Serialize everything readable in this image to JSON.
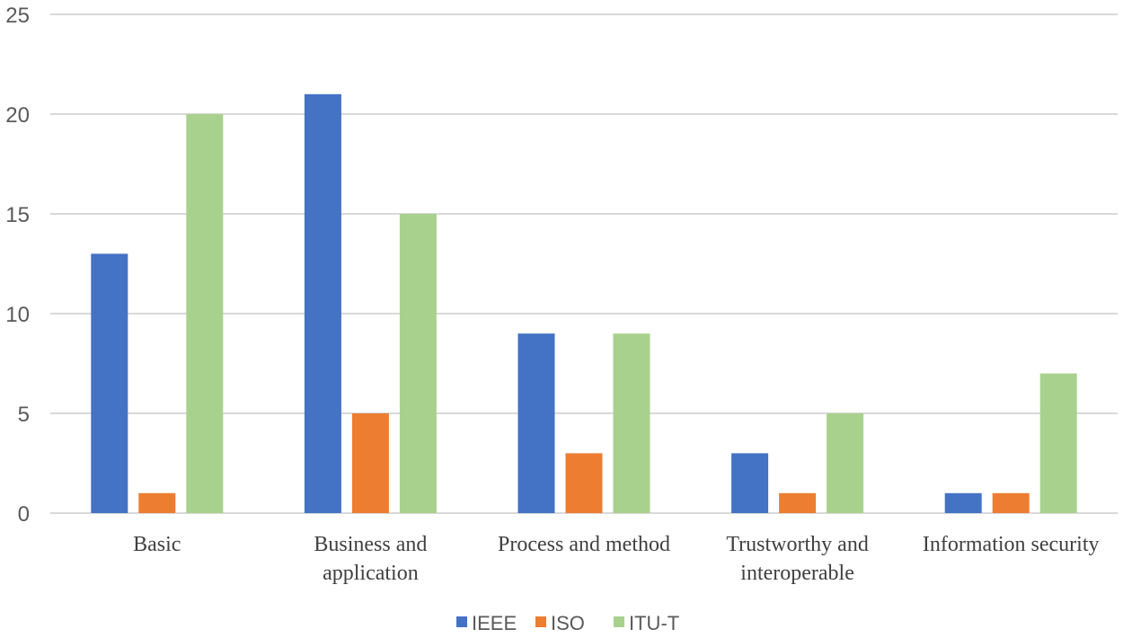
{
  "chart_data": {
    "type": "bar",
    "title": "",
    "xlabel": "",
    "ylabel": "",
    "ylim": [
      0,
      25
    ],
    "yticks": [
      0,
      5,
      10,
      15,
      20,
      25
    ],
    "grid": true,
    "legend_position": "bottom",
    "categories": [
      [
        "Basic"
      ],
      [
        "Business and",
        "application"
      ],
      [
        "Process and method"
      ],
      [
        "Trustworthy and",
        "interoperable"
      ],
      [
        "Information security"
      ]
    ],
    "category_names": [
      "Basic",
      "Business and application",
      "Process and method",
      "Trustworthy and interoperable",
      "Information security"
    ],
    "series": [
      {
        "name": "IEEE",
        "color": "#4472C4",
        "values": [
          13,
          21,
          9,
          3,
          1
        ]
      },
      {
        "name": "ISO",
        "color": "#ED7D31",
        "values": [
          1,
          5,
          3,
          1,
          1
        ]
      },
      {
        "name": "ITU-T",
        "color": "#A9D18E",
        "values": [
          20,
          15,
          9,
          5,
          7
        ]
      }
    ]
  },
  "style": {
    "gridline_color": "#D9D9D9"
  }
}
